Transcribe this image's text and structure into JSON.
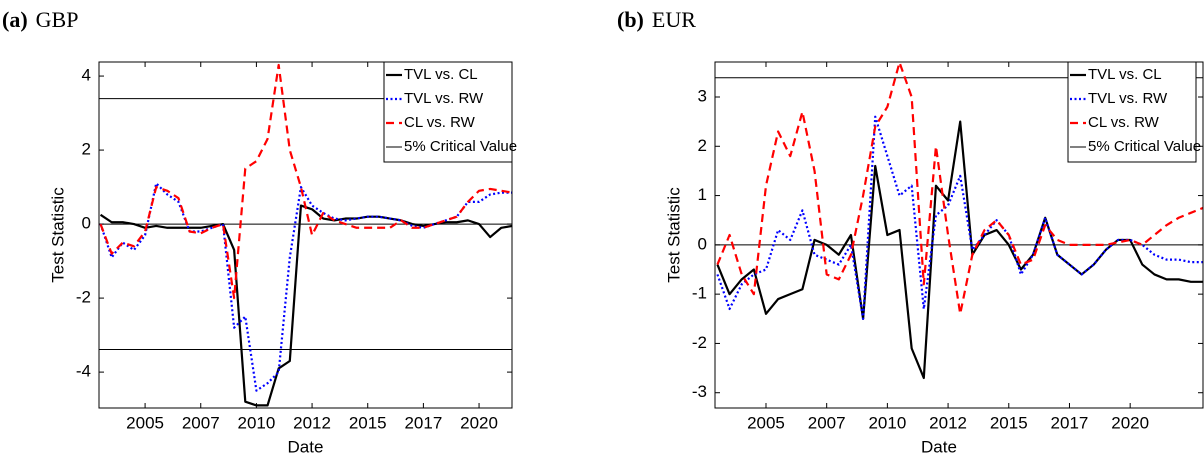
{
  "chart_data": [
    {
      "type": "line",
      "panel_label": "(a)",
      "title": "GBP",
      "x_label": "Date",
      "y_label": "Test Statistic",
      "x": [
        2003,
        2003.5,
        2004,
        2004.5,
        2005,
        2005.5,
        2006,
        2006.5,
        2007,
        2007.5,
        2008,
        2008.5,
        2009,
        2009.5,
        2010,
        2010.5,
        2011,
        2011.5,
        2012,
        2012.5,
        2013,
        2013.5,
        2014,
        2014.5,
        2015,
        2015.5,
        2016,
        2016.5,
        2017,
        2017.5,
        2018,
        2018.5,
        2019,
        2019.5,
        2020,
        2020.5,
        2021,
        2021.5
      ],
      "series": [
        {
          "name": "TVL vs. CL",
          "color": "#000000",
          "dash": "solid",
          "values": [
            0.25,
            0.05,
            0.05,
            0.0,
            -0.1,
            -0.05,
            -0.1,
            -0.1,
            -0.1,
            -0.1,
            -0.05,
            0.0,
            -0.7,
            -4.8,
            -4.9,
            -4.9,
            -3.9,
            -3.7,
            0.5,
            0.4,
            0.15,
            0.1,
            0.15,
            0.15,
            0.2,
            0.2,
            0.15,
            0.1,
            0.0,
            -0.05,
            0.0,
            0.05,
            0.05,
            0.1,
            0.0,
            -0.35,
            -0.1,
            -0.05
          ]
        },
        {
          "name": "TVL vs. RW",
          "color": "#0000ff",
          "dash": "dotted",
          "values": [
            0.0,
            -0.9,
            -0.5,
            -0.7,
            -0.3,
            1.1,
            0.8,
            0.6,
            -0.2,
            -0.2,
            -0.1,
            0.0,
            -2.8,
            -2.5,
            -4.5,
            -4.3,
            -4.0,
            -0.9,
            1.0,
            0.5,
            0.3,
            0.15,
            0.1,
            0.15,
            0.2,
            0.2,
            0.15,
            0.1,
            -0.05,
            -0.1,
            0.0,
            0.1,
            0.2,
            0.6,
            0.6,
            0.8,
            0.85,
            0.85
          ]
        },
        {
          "name": "CL vs. RW",
          "color": "#ff0000",
          "dash": "dashed",
          "values": [
            0.0,
            -0.8,
            -0.5,
            -0.6,
            -0.2,
            1.0,
            0.9,
            0.7,
            -0.2,
            -0.25,
            -0.1,
            0.0,
            -2.0,
            1.5,
            1.7,
            2.3,
            4.3,
            2.0,
            1.0,
            -0.3,
            0.3,
            0.1,
            0.0,
            -0.1,
            -0.1,
            -0.1,
            -0.1,
            0.1,
            -0.1,
            -0.1,
            0.0,
            0.1,
            0.2,
            0.6,
            0.9,
            0.95,
            0.9,
            0.85
          ]
        }
      ],
      "reference_lines": {
        "name": "5% Critical Value",
        "color": "#000000",
        "values": [
          3.39,
          -3.39
        ]
      },
      "zero_line": true,
      "xlim": [
        2002.93,
        2021.48
      ],
      "ylim": [
        -4.97,
        4.38
      ],
      "xticks": [
        {
          "value": 2005,
          "label": "2005"
        },
        {
          "value": 2007.5,
          "label": "2007"
        },
        {
          "value": 2010,
          "label": "2010"
        },
        {
          "value": 2012.5,
          "label": "2012"
        },
        {
          "value": 2015,
          "label": "2015"
        },
        {
          "value": 2017.5,
          "label": "2017"
        },
        {
          "value": 2020,
          "label": "2020"
        }
      ],
      "yticks": [
        -4,
        -2,
        0,
        2,
        4
      ],
      "legend": "upper right"
    },
    {
      "type": "line",
      "panel_label": "(b)",
      "title": "EUR",
      "x_label": "Date",
      "y_label": "Test Statistic",
      "x": [
        2003,
        2003.5,
        2004,
        2004.5,
        2005,
        2005.5,
        2006,
        2006.5,
        2007,
        2007.5,
        2008,
        2008.5,
        2009,
        2009.5,
        2010,
        2010.5,
        2011,
        2011.5,
        2012,
        2012.5,
        2013,
        2013.5,
        2014,
        2014.5,
        2015,
        2015.5,
        2016,
        2016.5,
        2017,
        2017.5,
        2018,
        2018.5,
        2019,
        2019.5,
        2020,
        2020.5,
        2021,
        2021.5,
        2022,
        2022.5,
        2023
      ],
      "series": [
        {
          "name": "TVL vs. CL",
          "color": "#000000",
          "dash": "solid",
          "values": [
            -0.4,
            -1.0,
            -0.7,
            -0.5,
            -1.4,
            -1.1,
            -1.0,
            -0.9,
            0.1,
            0.0,
            -0.2,
            0.2,
            -1.5,
            1.6,
            0.2,
            0.3,
            -2.1,
            -2.7,
            1.2,
            0.9,
            2.5,
            -0.2,
            0.2,
            0.3,
            0.0,
            -0.5,
            -0.2,
            0.55,
            -0.2,
            -0.4,
            -0.6,
            -0.4,
            -0.1,
            0.1,
            0.1,
            -0.4,
            -0.6,
            -0.7,
            -0.7,
            -0.75,
            -0.75
          ]
        },
        {
          "name": "TVL vs. RW",
          "color": "#0000ff",
          "dash": "dotted",
          "values": [
            -0.6,
            -1.3,
            -0.8,
            -0.6,
            -0.5,
            0.3,
            0.1,
            0.7,
            -0.2,
            -0.3,
            -0.4,
            0.0,
            -1.5,
            2.6,
            1.8,
            1.0,
            1.2,
            -1.3,
            0.6,
            0.8,
            1.4,
            -0.1,
            0.2,
            0.5,
            0.2,
            -0.6,
            -0.2,
            0.55,
            -0.2,
            -0.4,
            -0.6,
            -0.4,
            -0.1,
            0.1,
            0.1,
            0.0,
            -0.2,
            -0.3,
            -0.3,
            -0.35,
            -0.35
          ]
        },
        {
          "name": "CL vs. RW",
          "color": "#ff0000",
          "dash": "dashed",
          "values": [
            -0.4,
            0.2,
            -0.6,
            -1.0,
            1.2,
            2.3,
            1.8,
            2.7,
            1.5,
            -0.6,
            -0.7,
            -0.2,
            1.0,
            2.4,
            2.8,
            3.7,
            3.0,
            -0.8,
            2.0,
            0.2,
            -1.4,
            -0.2,
            0.3,
            0.5,
            0.2,
            -0.4,
            -0.3,
            0.4,
            0.1,
            0.0,
            0.0,
            0.0,
            0.0,
            0.05,
            0.1,
            0.0,
            0.2,
            0.4,
            0.55,
            0.65,
            0.75
          ]
        }
      ],
      "reference_lines": {
        "name": "5% Critical Value",
        "color": "#000000",
        "values": [
          3.39,
          -3.39
        ]
      },
      "zero_line": true,
      "xlim": [
        2002.9,
        2023.0
      ],
      "ylim": [
        -3.31,
        3.71
      ],
      "xticks": [
        {
          "value": 2005,
          "label": "2005"
        },
        {
          "value": 2007.5,
          "label": "2007"
        },
        {
          "value": 2010,
          "label": "2010"
        },
        {
          "value": 2012.5,
          "label": "2012"
        },
        {
          "value": 2015,
          "label": "2015"
        },
        {
          "value": 2017.5,
          "label": "2017"
        },
        {
          "value": 2020,
          "label": "2020"
        }
      ],
      "yticks": [
        -3,
        -2,
        -1,
        0,
        1,
        2,
        3
      ],
      "legend": "upper right"
    }
  ]
}
